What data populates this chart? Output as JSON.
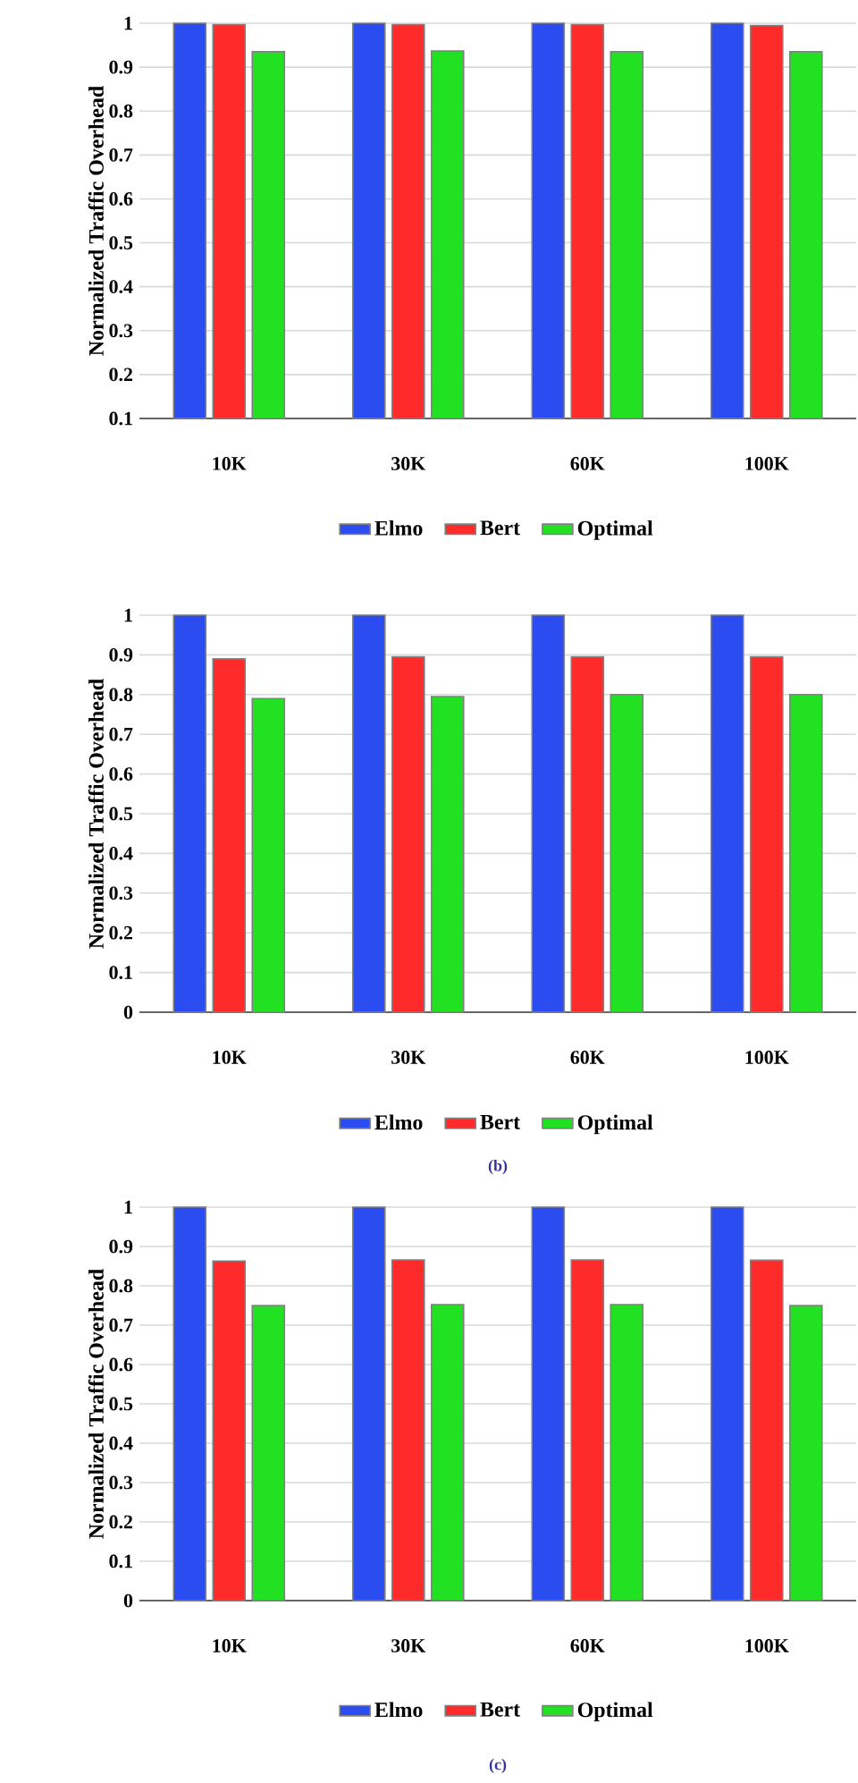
{
  "chart_data": [
    {
      "type": "bar",
      "ylabel": "Normalized Traffic Overhead",
      "categories": [
        "10K",
        "30K",
        "60K",
        "100K"
      ],
      "series": [
        {
          "name": "Elmo",
          "color": "#2b4cf0",
          "values": [
            1,
            1,
            1,
            1
          ]
        },
        {
          "name": "Bert",
          "color": "#ff2a2a",
          "values": [
            0.997,
            0.997,
            0.997,
            0.995
          ]
        },
        {
          "name": "Optimal",
          "color": "#22e022",
          "values": [
            0.935,
            0.937,
            0.935,
            0.935
          ]
        }
      ],
      "ylim": [
        0.1,
        1
      ],
      "yticks": [
        0.1,
        0.2,
        0.3,
        0.4,
        0.5,
        0.6,
        0.7,
        0.8,
        0.9,
        1
      ],
      "grid": "y",
      "legend": "bottom"
    },
    {
      "type": "bar",
      "ylabel": "Normalized Traffic Overhead",
      "categories": [
        "10K",
        "30K",
        "60K",
        "100K"
      ],
      "series": [
        {
          "name": "Elmo",
          "color": "#2b4cf0",
          "values": [
            1,
            1,
            1,
            1
          ]
        },
        {
          "name": "Bert",
          "color": "#ff2a2a",
          "values": [
            0.89,
            0.895,
            0.895,
            0.895
          ]
        },
        {
          "name": "Optimal",
          "color": "#22e022",
          "values": [
            0.79,
            0.795,
            0.8,
            0.8
          ]
        }
      ],
      "ylim": [
        0,
        1
      ],
      "yticks": [
        0,
        0.1,
        0.2,
        0.3,
        0.4,
        0.5,
        0.6,
        0.7,
        0.8,
        0.9,
        1
      ],
      "grid": "y",
      "legend": "bottom",
      "annotations": [
        "(b)"
      ]
    },
    {
      "type": "bar",
      "ylabel": "Normalized Traffic Overhead",
      "categories": [
        "10K",
        "30K",
        "60K",
        "100K"
      ],
      "series": [
        {
          "name": "Elmo",
          "color": "#2b4cf0",
          "values": [
            1,
            1,
            1,
            1
          ]
        },
        {
          "name": "Bert",
          "color": "#ff2a2a",
          "values": [
            0.863,
            0.866,
            0.866,
            0.865
          ]
        },
        {
          "name": "Optimal",
          "color": "#22e022",
          "values": [
            0.75,
            0.752,
            0.752,
            0.75
          ]
        }
      ],
      "ylim": [
        0,
        1
      ],
      "yticks": [
        0,
        0.1,
        0.2,
        0.3,
        0.4,
        0.5,
        0.6,
        0.7,
        0.8,
        0.9,
        1
      ],
      "grid": "y",
      "legend": "bottom",
      "annotations": [
        "(c)"
      ]
    }
  ]
}
